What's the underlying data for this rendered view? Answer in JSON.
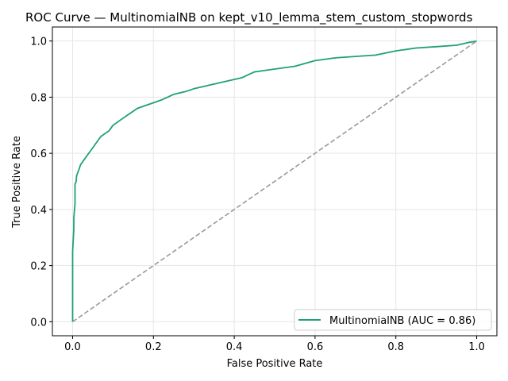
{
  "colors": {
    "roc_line": "#1fa07a",
    "diagonal": "#999999",
    "grid": "#e6e6e6",
    "axes": "#000000"
  },
  "chart_data": {
    "type": "line",
    "title": "ROC Curve — MultinomialNB on kept_v10_lemma_stem_custom_stopwords",
    "xlabel": "False Positive Rate",
    "ylabel": "True Positive Rate",
    "xlim": [
      -0.05,
      1.05
    ],
    "ylim": [
      -0.05,
      1.05
    ],
    "xticks": [
      "0.0",
      "0.2",
      "0.4",
      "0.6",
      "0.8",
      "1.0"
    ],
    "yticks": [
      "0.0",
      "0.2",
      "0.4",
      "0.6",
      "0.8",
      "1.0"
    ],
    "grid": true,
    "legend_position": "lower-right",
    "series": [
      {
        "name": "MultinomialNB (AUC = 0.86)",
        "style": "solid",
        "color": "#1fa07a",
        "x": [
          0.0,
          0.0,
          0.003,
          0.003,
          0.006,
          0.006,
          0.009,
          0.01,
          0.015,
          0.02,
          0.025,
          0.03,
          0.04,
          0.05,
          0.06,
          0.07,
          0.08,
          0.09,
          0.1,
          0.12,
          0.14,
          0.16,
          0.18,
          0.2,
          0.22,
          0.25,
          0.28,
          0.3,
          0.33,
          0.36,
          0.39,
          0.42,
          0.45,
          0.5,
          0.55,
          0.6,
          0.65,
          0.7,
          0.75,
          0.8,
          0.85,
          0.9,
          0.95,
          0.98,
          1.0
        ],
        "y": [
          0.0,
          0.25,
          0.33,
          0.37,
          0.42,
          0.49,
          0.5,
          0.52,
          0.54,
          0.56,
          0.57,
          0.58,
          0.6,
          0.62,
          0.64,
          0.66,
          0.67,
          0.68,
          0.7,
          0.72,
          0.74,
          0.76,
          0.77,
          0.78,
          0.79,
          0.81,
          0.82,
          0.83,
          0.84,
          0.85,
          0.86,
          0.87,
          0.89,
          0.9,
          0.91,
          0.93,
          0.94,
          0.945,
          0.95,
          0.965,
          0.975,
          0.98,
          0.985,
          0.995,
          1.0
        ]
      },
      {
        "name": "",
        "style": "dashed",
        "color": "#999999",
        "x": [
          0.0,
          1.0
        ],
        "y": [
          0.0,
          1.0
        ]
      }
    ]
  }
}
